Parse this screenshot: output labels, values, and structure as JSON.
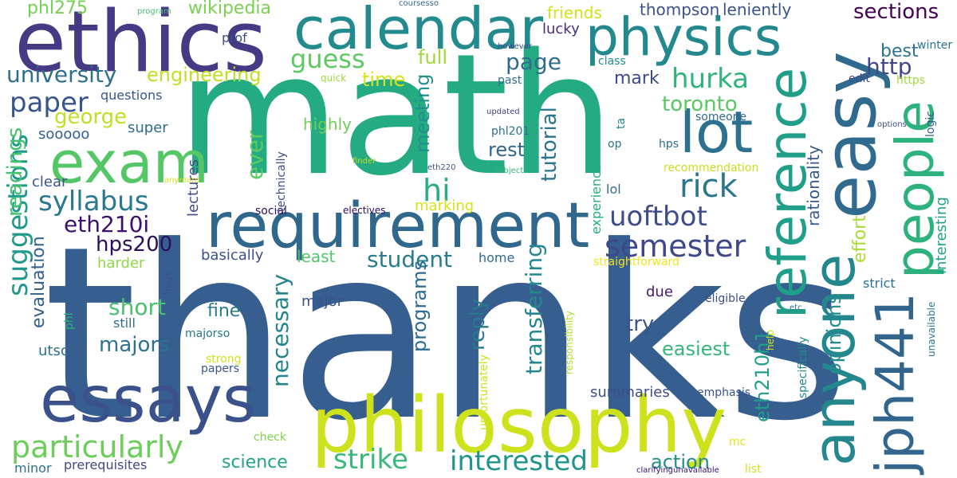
{
  "words": [
    {
      "text": "thanks",
      "color": "#365e8f"
    },
    {
      "text": "math",
      "color": "#25ab82"
    },
    {
      "text": "ethics",
      "color": "#463a85"
    },
    {
      "text": "calendar",
      "color": "#238a8d"
    },
    {
      "text": "physics",
      "color": "#23898e"
    },
    {
      "text": "requirement",
      "color": "#30678d"
    },
    {
      "text": "exam",
      "color": "#55c666"
    },
    {
      "text": "lot",
      "color": "#2d718e"
    },
    {
      "text": "essays",
      "color": "#3b518b"
    },
    {
      "text": "philosophy",
      "color": "#cde11d"
    },
    {
      "text": "anyone",
      "color": "#24878e"
    },
    {
      "text": "easy",
      "color": "#306a8e"
    },
    {
      "text": "people",
      "color": "#2db27d"
    },
    {
      "text": "reference",
      "color": "#1f9e89"
    },
    {
      "text": "jph441",
      "color": "#32658e"
    },
    {
      "text": "semester",
      "color": "#3f4889"
    },
    {
      "text": "uoftbot",
      "color": "#3e4c8a"
    },
    {
      "text": "rick",
      "color": "#2a768e"
    },
    {
      "text": "syllabus",
      "color": "#2a788e"
    },
    {
      "text": "hurka",
      "color": "#2fb47c"
    },
    {
      "text": "interested",
      "color": "#1f948c"
    },
    {
      "text": "particularly",
      "color": "#6ccd5a"
    },
    {
      "text": "strike",
      "color": "#39b977"
    },
    {
      "text": "guess",
      "color": "#5ec962"
    },
    {
      "text": "university",
      "color": "#2e6f8e"
    },
    {
      "text": "engineering",
      "color": "#c0df25"
    },
    {
      "text": "paper",
      "color": "#39568c"
    },
    {
      "text": "george",
      "color": "#c2df23"
    },
    {
      "text": "page",
      "color": "#2f6c8e"
    },
    {
      "text": "full",
      "color": "#a0da39"
    },
    {
      "text": "time",
      "color": "#d8e219"
    },
    {
      "text": "hi",
      "color": "#26ad81"
    },
    {
      "text": "wikipedia",
      "color": "#7ad151"
    },
    {
      "text": "phl275",
      "color": "#75d054"
    },
    {
      "text": "student",
      "color": "#287c8e"
    },
    {
      "text": "eth210i",
      "color": "#3c0f70"
    },
    {
      "text": "hps200",
      "color": "#2a0f5e"
    },
    {
      "text": "suggestions",
      "color": "#1f998a"
    },
    {
      "text": "readings",
      "color": "#46c06f"
    },
    {
      "text": "evaluation",
      "color": "#34608d"
    },
    {
      "text": "short",
      "color": "#4ac16d"
    },
    {
      "text": "majors",
      "color": "#2c728e"
    },
    {
      "text": "necessary",
      "color": "#25838e"
    },
    {
      "text": "programs",
      "color": "#2f6b8e"
    },
    {
      "text": "reply",
      "color": "#2a788e"
    },
    {
      "text": "transferring",
      "color": "#24878e"
    },
    {
      "text": "tutorial",
      "color": "#2c738e"
    },
    {
      "text": "meeting",
      "color": "#21918c"
    },
    {
      "text": "rest",
      "color": "#31668e"
    },
    {
      "text": "mark",
      "color": "#3e4989"
    },
    {
      "text": "toronto",
      "color": "#5cc863"
    },
    {
      "text": "http",
      "color": "#3f4788"
    },
    {
      "text": "best",
      "color": "#2c728e"
    },
    {
      "text": "sections",
      "color": "#440154"
    },
    {
      "text": "thompson",
      "color": "#3b518b"
    },
    {
      "text": "leniently",
      "color": "#39568c"
    },
    {
      "text": "friends",
      "color": "#d2e21b"
    },
    {
      "text": "lucky",
      "color": "#462d7c"
    },
    {
      "text": "rationality",
      "color": "#38598c"
    },
    {
      "text": "effort",
      "color": "#a8db34"
    },
    {
      "text": "opinions",
      "color": "#228c8d"
    },
    {
      "text": "eth210h1",
      "color": "#1f9e89"
    },
    {
      "text": "interesting",
      "color": "#1fa187"
    },
    {
      "text": "easiest",
      "color": "#35b779"
    },
    {
      "text": "try",
      "color": "#39558c"
    },
    {
      "text": "action",
      "color": "#228d8d"
    },
    {
      "text": "science",
      "color": "#20a386"
    },
    {
      "text": "summaries",
      "color": "#3d4d8a"
    },
    {
      "text": "due",
      "color": "#48186a"
    },
    {
      "text": "fine",
      "color": "#297a8e"
    },
    {
      "text": "major",
      "color": "#3b528b"
    },
    {
      "text": "basically",
      "color": "#3c508b"
    },
    {
      "text": "least",
      "color": "#52c569"
    },
    {
      "text": "ever",
      "color": "#5ec962"
    },
    {
      "text": "highly",
      "color": "#6ece58"
    },
    {
      "text": "marking",
      "color": "#d5e21a"
    },
    {
      "text": "home",
      "color": "#31688e"
    },
    {
      "text": "lectures",
      "color": "#3e4c8a"
    },
    {
      "text": "social",
      "color": "#2a0f5e"
    },
    {
      "text": "electives",
      "color": "#2a0f5e"
    },
    {
      "text": "technically",
      "color": "#3c4f8a"
    },
    {
      "text": "clear",
      "color": "#39568c"
    },
    {
      "text": "harder",
      "color": "#8fd744"
    },
    {
      "text": "super",
      "color": "#2f6c8e"
    },
    {
      "text": "sooooo",
      "color": "#365d8d"
    },
    {
      "text": "questions",
      "color": "#38578c"
    },
    {
      "text": "prof",
      "color": "#3c508b"
    },
    {
      "text": "program",
      "color": "#45be71"
    },
    {
      "text": "coursesso",
      "color": "#32648e"
    },
    {
      "text": "however",
      "color": "#3e4989"
    },
    {
      "text": "past",
      "color": "#2d718e"
    },
    {
      "text": "updated",
      "color": "#414487"
    },
    {
      "text": "phl201",
      "color": "#2b748e"
    },
    {
      "text": "quick",
      "color": "#9bd93c"
    },
    {
      "text": "class",
      "color": "#228b8d"
    },
    {
      "text": "edit",
      "color": "#3e4a89"
    },
    {
      "text": "winter",
      "color": "#2a768e"
    },
    {
      "text": "https",
      "color": "#a0da39"
    },
    {
      "text": "someone",
      "color": "#306a8e"
    },
    {
      "text": "logic",
      "color": "#365d8d"
    },
    {
      "text": "options",
      "color": "#3d4d8a"
    },
    {
      "text": "ta",
      "color": "#24868e"
    },
    {
      "text": "op",
      "color": "#2c738e"
    },
    {
      "text": "hps",
      "color": "#2c718e"
    },
    {
      "text": "recommendation",
      "color": "#c8e020"
    },
    {
      "text": "eth220",
      "color": "#3b528b"
    },
    {
      "text": "finder",
      "color": "#bddf26"
    },
    {
      "text": "subject",
      "color": "#2fb47c"
    },
    {
      "text": "anymore",
      "color": "#d8e219"
    },
    {
      "text": "lol",
      "color": "#2e6e8e"
    },
    {
      "text": "experience",
      "color": "#25ab82"
    },
    {
      "text": "straightforward",
      "color": "#f1e51d"
    },
    {
      "text": "strict",
      "color": "#2d718e"
    },
    {
      "text": "eligible",
      "color": "#3d4e8a"
    },
    {
      "text": "responsibility",
      "color": "#b5de2b"
    },
    {
      "text": "specifically",
      "color": "#23898e"
    },
    {
      "text": "unavailable",
      "color": "#297a8e"
    },
    {
      "text": "etc",
      "color": "#2d708e"
    },
    {
      "text": "help",
      "color": "#d2e21b"
    },
    {
      "text": "emphasis",
      "color": "#3a548c"
    },
    {
      "text": "mc",
      "color": "#e5e419"
    },
    {
      "text": "list",
      "color": "#cde11d"
    },
    {
      "text": "clarifyingunavailable",
      "color": "#3b0f70"
    },
    {
      "text": "unfortunately",
      "color": "#cfe11c"
    },
    {
      "text": "jon",
      "color": "#32658e"
    },
    {
      "text": "check",
      "color": "#7fd34e"
    },
    {
      "text": "strong",
      "color": "#d2e21b"
    },
    {
      "text": "papers",
      "color": "#39558c"
    },
    {
      "text": "majorso",
      "color": "#2a768e"
    },
    {
      "text": "huge",
      "color": "#3a548c"
    },
    {
      "text": "still",
      "color": "#2e6e8e"
    },
    {
      "text": "phl",
      "color": "#2db27d"
    },
    {
      "text": "utsc",
      "color": "#2c718e"
    },
    {
      "text": "minor",
      "color": "#2d708e"
    },
    {
      "text": "prerequisites",
      "color": "#3f4889"
    }
  ]
}
